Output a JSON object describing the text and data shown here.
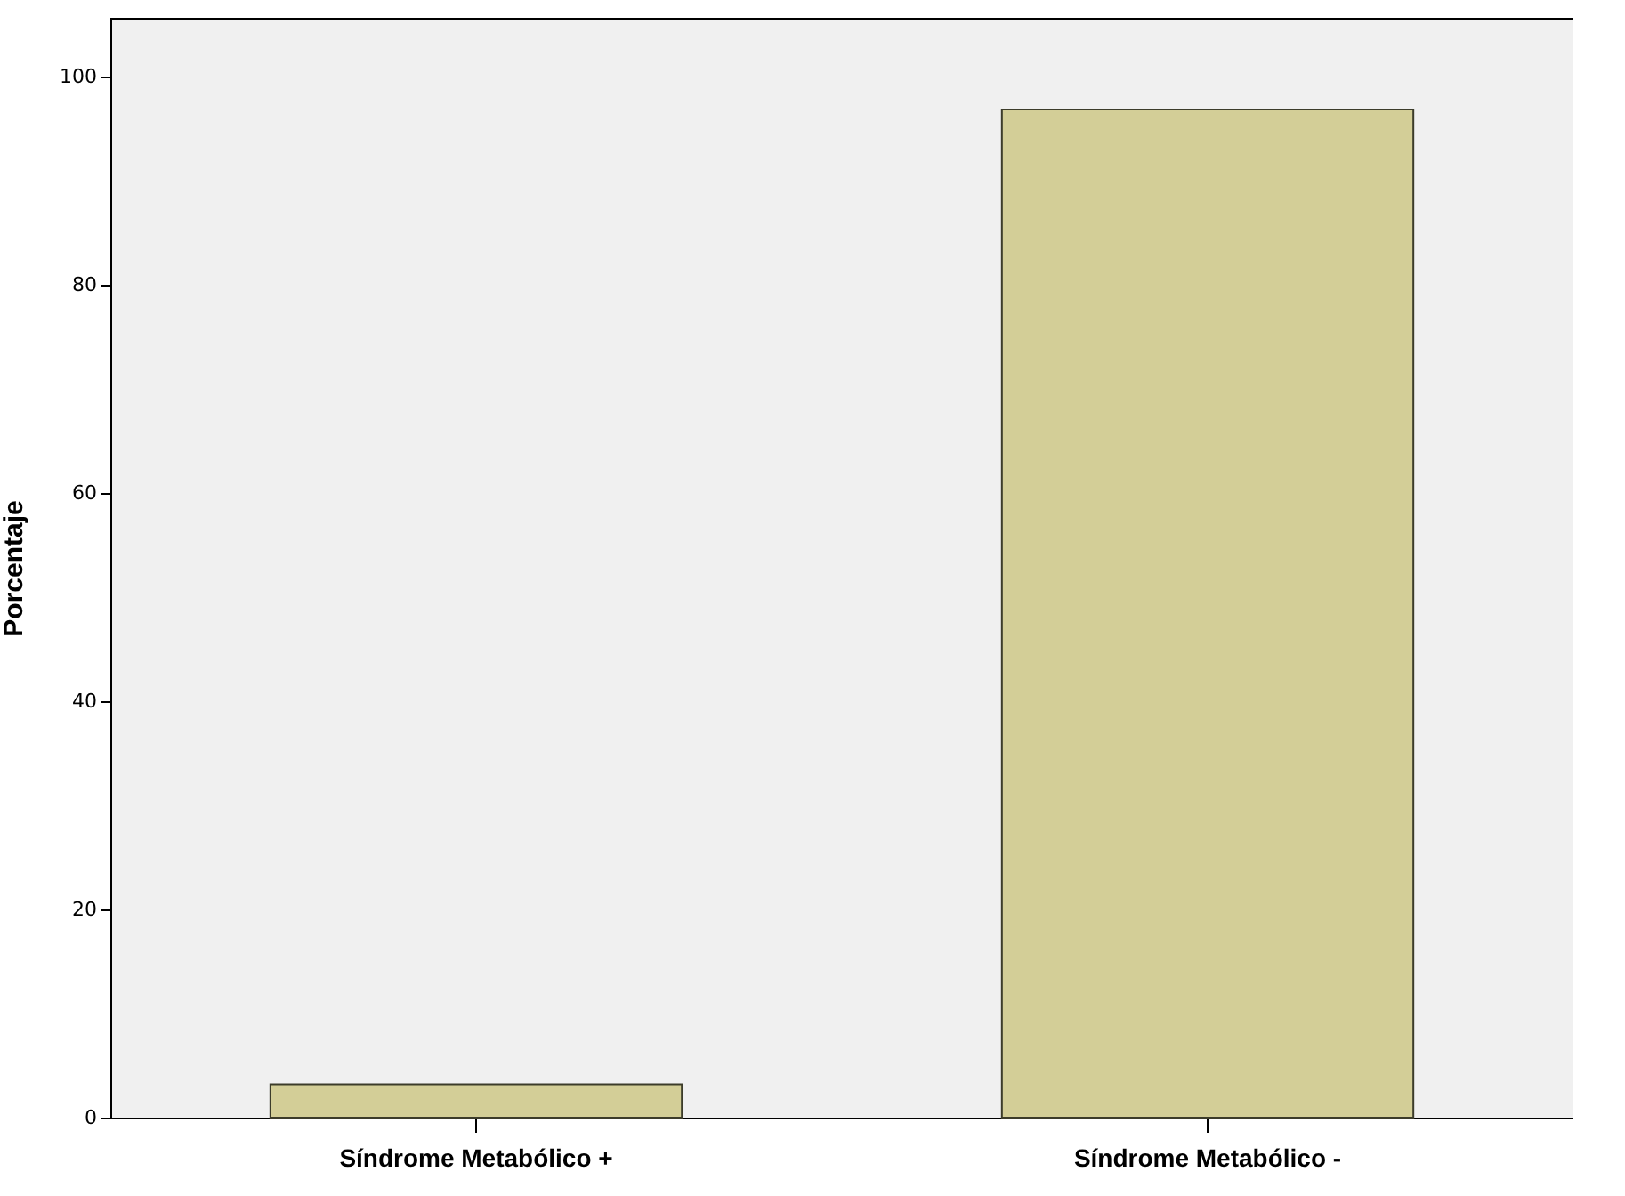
{
  "chart_data": {
    "type": "bar",
    "ylabel": "Porcentaje",
    "categories": [
      "Síndrome Metabólico +",
      "Síndrome Metabólico -"
    ],
    "values": [
      3.2,
      96.8
    ],
    "color": "#d3ce97",
    "ylim": [
      0,
      105.6
    ],
    "yticks": [
      0,
      20,
      40,
      60,
      80,
      100
    ],
    "grid": false
  }
}
